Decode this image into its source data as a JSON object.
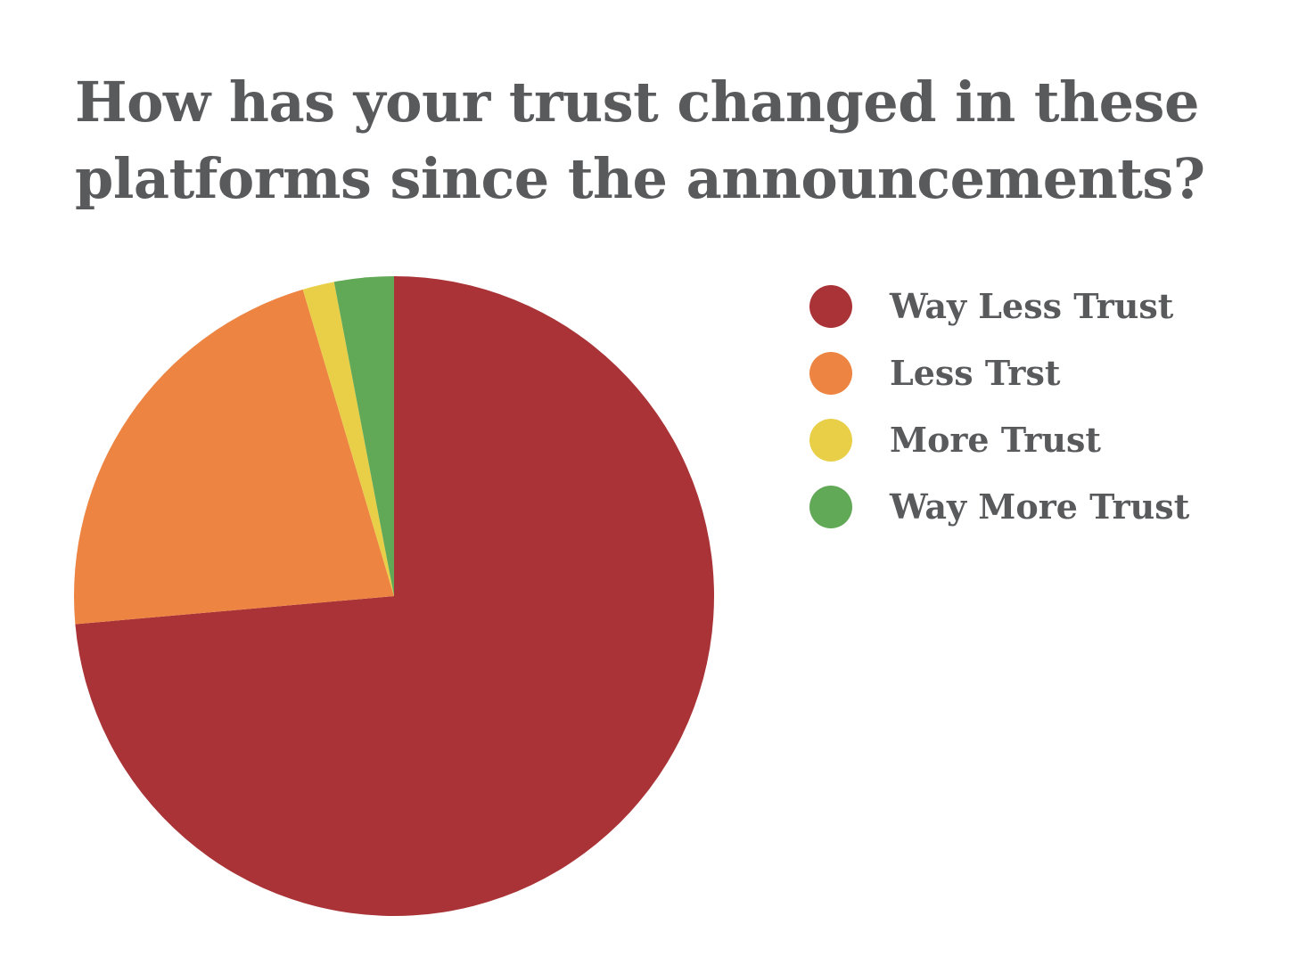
{
  "chart_data": {
    "type": "pie",
    "title": "How has your trust changed in these platforms since the announcements?",
    "categories": [
      "Way Less Trust",
      "Less Trst",
      "More Trust",
      "Way More Trust"
    ],
    "values": [
      73.6,
      21.8,
      1.6,
      3.0
    ],
    "colors": [
      "#a93336",
      "#ed8442",
      "#e9cf48",
      "#61a956"
    ],
    "legend_position": "right"
  }
}
